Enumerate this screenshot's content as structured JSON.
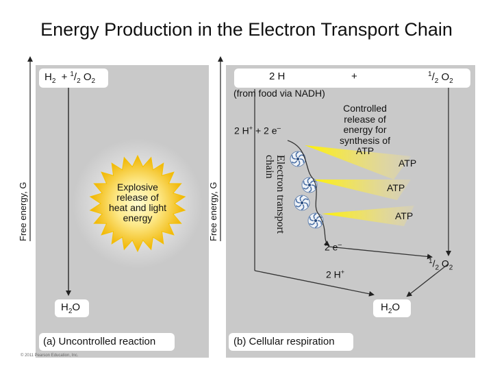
{
  "title": "Energy Production in the Electron Transport Chain",
  "axis_label": "Free energy, G",
  "panel_a": {
    "top_formula_h": "H",
    "top_formula_sub2": "2",
    "top_formula_plus": "+",
    "top_formula_sup": "1",
    "top_formula_frac_slash": "/",
    "top_formula_den": "2",
    "top_formula_o": "O",
    "top_formula_o_sub": "2",
    "explosion_lines": [
      "Explosive",
      "release of",
      "heat and light",
      "energy"
    ],
    "product_h": "H",
    "product_sub": "2",
    "product_o": "O",
    "caption": "(a) Uncontrolled reaction"
  },
  "panel_b": {
    "top_2h": "2 H",
    "top_plus": "+",
    "top_half": "1",
    "top_slash": "/",
    "top_den": "2",
    "top_o": "O",
    "top_o_sub": "2",
    "from_food": "(from food via NADH)",
    "controlled_lines": [
      "Controlled",
      "release of",
      "energy for",
      "synthesis of",
      "ATP"
    ],
    "h_plus_2e": "2 H",
    "h_plus_sup": "+",
    "h_plus_2e_rest": "+ 2 e",
    "h_plus_2e_sup": "–",
    "chain_line1": "Electron transport",
    "chain_line2": "chain",
    "atp_labels": [
      "ATP",
      "ATP",
      "ATP"
    ],
    "bottom_2e": "2 e",
    "bottom_2e_sup": "–",
    "bottom_2h": "2 H",
    "bottom_2h_sup": "+",
    "right_half": "1",
    "right_slash": "/",
    "right_den": "2",
    "right_o": "O",
    "right_o_sub": "2",
    "product_h": "H",
    "product_sub": "2",
    "product_o": "O",
    "caption": "(b) Cellular respiration"
  },
  "copyright": "© 2011 Pearson Education, Inc.",
  "colors": {
    "panel": "#c9c9c9",
    "starburst": "#f2c419",
    "starburst_core": "#fff6a6",
    "atp_burst": "#ffe600",
    "electron_icon": "#4a6fa5"
  }
}
